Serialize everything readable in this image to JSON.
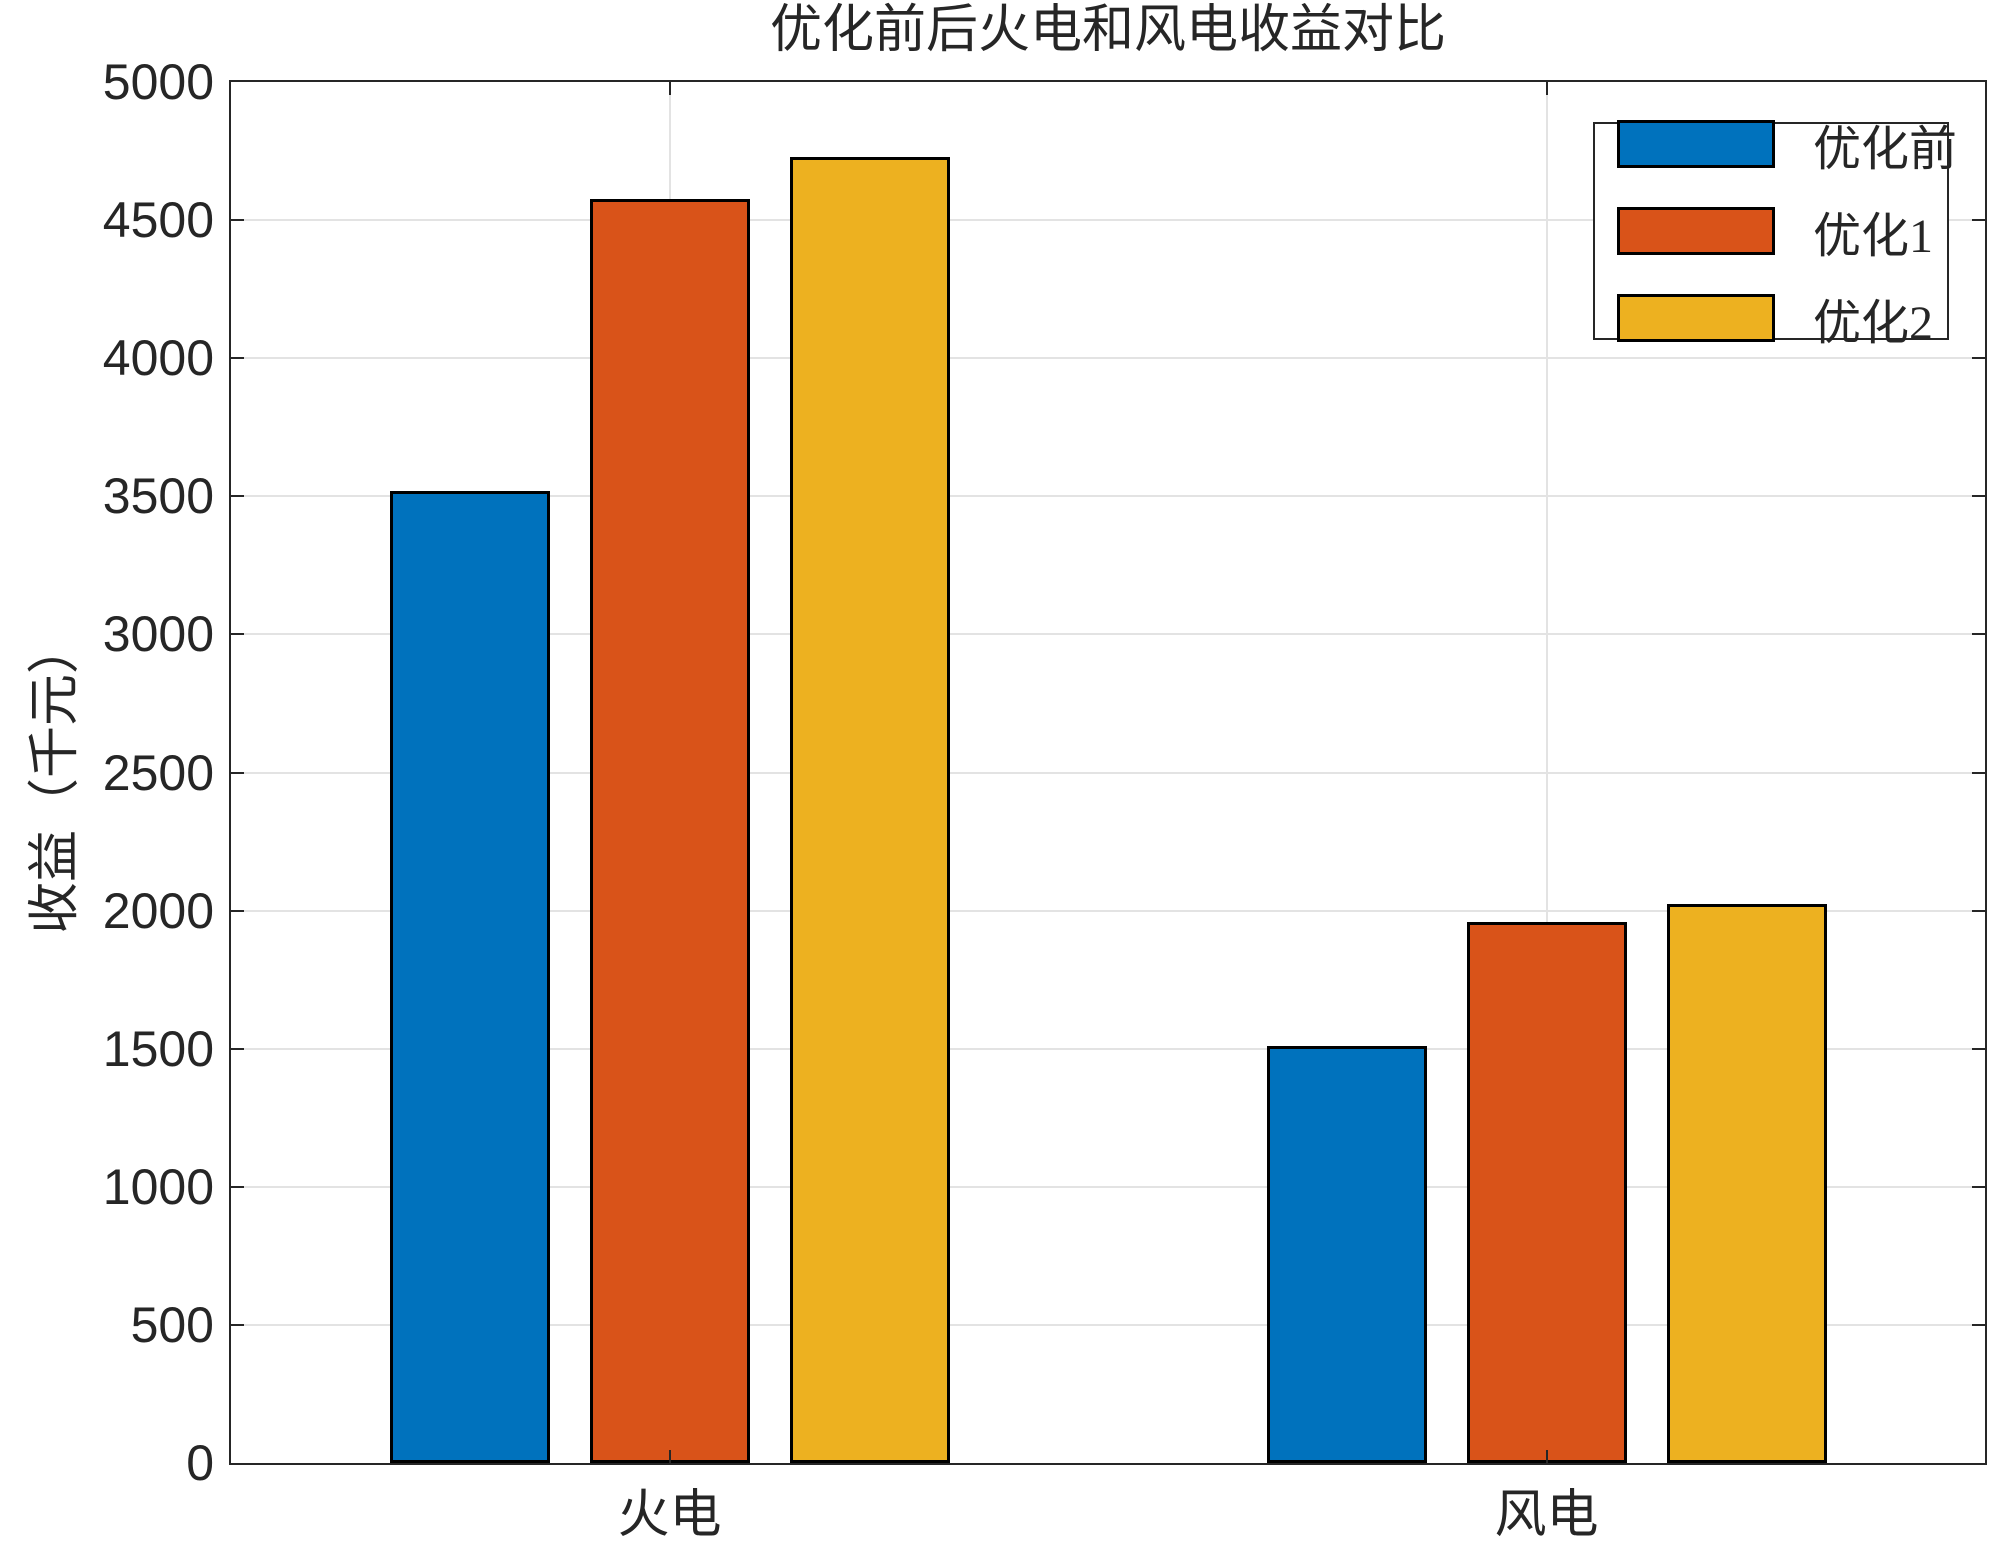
{
  "figure": {
    "background_color": "#ffffff",
    "axis_color": "#262626",
    "grid_color": "#e3e3e3",
    "bar_edge_color": "#000000"
  },
  "chart_data": {
    "type": "bar",
    "title": "优化前后火电和风电收益对比",
    "xlabel": "",
    "ylabel": "收益（千元）",
    "categories": [
      "火电",
      "风电"
    ],
    "series": [
      {
        "name": "优化前",
        "color": "#0072BD",
        "values": [
          3520,
          1510
        ]
      },
      {
        "name": "优化1",
        "color": "#D95319",
        "values": [
          4575,
          1960
        ]
      },
      {
        "name": "优化2",
        "color": "#EDB120",
        "values": [
          4730,
          2025
        ]
      }
    ],
    "ylim": [
      0,
      5000
    ],
    "ytick_step": 500,
    "ytick_labels": [
      "0",
      "500",
      "1000",
      "1500",
      "2000",
      "2500",
      "3000",
      "3500",
      "4000",
      "4500",
      "5000"
    ],
    "grid": true,
    "legend_position": "top-right"
  }
}
